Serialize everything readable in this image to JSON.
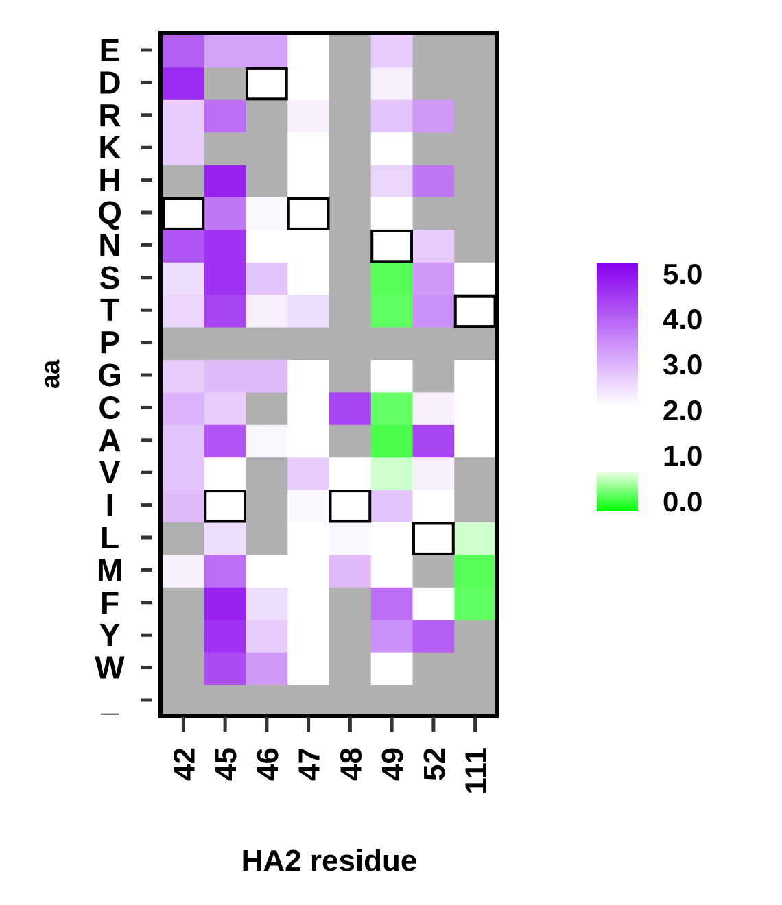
{
  "chart_data": {
    "type": "heatmap",
    "xlabel": "HA2 residue",
    "ylabel": "aa",
    "x_categories": [
      "42",
      "45",
      "46",
      "47",
      "48",
      "49",
      "52",
      "111"
    ],
    "y_categories": [
      "E",
      "D",
      "R",
      "K",
      "H",
      "Q",
      "N",
      "S",
      "T",
      "P",
      "G",
      "C",
      "A",
      "V",
      "I",
      "L",
      "M",
      "F",
      "Y",
      "W",
      "_"
    ],
    "value_range": [
      0,
      5
    ],
    "colorbar": {
      "ticks": [
        "5.0",
        "4.0",
        "3.0",
        "2.0",
        "1.0",
        "0.0"
      ],
      "high_color": "#8800ee",
      "mid_color": "#ffffff",
      "low_color": "#00ff00"
    },
    "missing_color": "#b0b0b0",
    "values": [
      [
        3.9,
        3.1,
        3.1,
        2.0,
        null,
        2.6,
        null,
        null
      ],
      [
        4.5,
        null,
        2.0,
        2.0,
        null,
        2.2,
        null,
        null
      ],
      [
        2.6,
        3.7,
        null,
        2.2,
        null,
        2.7,
        3.2,
        null
      ],
      [
        2.6,
        null,
        null,
        2.0,
        null,
        2.0,
        null,
        null
      ],
      [
        null,
        4.6,
        null,
        2.0,
        null,
        2.5,
        3.6,
        null
      ],
      [
        2.0,
        3.6,
        2.1,
        2.0,
        null,
        2.0,
        null,
        null
      ],
      [
        4.0,
        4.4,
        2.0,
        2.0,
        null,
        2.0,
        2.6,
        null
      ],
      [
        2.4,
        4.4,
        2.7,
        2.0,
        null,
        0.7,
        3.2,
        2.0
      ],
      [
        2.5,
        4.2,
        2.2,
        2.4,
        null,
        0.75,
        3.3,
        2.0
      ],
      [
        null,
        null,
        null,
        null,
        null,
        null,
        null,
        null
      ],
      [
        2.6,
        2.8,
        2.8,
        2.0,
        null,
        2.0,
        null,
        2.0
      ],
      [
        2.9,
        2.6,
        null,
        2.0,
        4.2,
        0.8,
        2.2,
        2.0
      ],
      [
        2.7,
        4.0,
        2.1,
        2.0,
        null,
        0.6,
        4.2,
        2.0
      ],
      [
        2.7,
        2.0,
        null,
        2.6,
        2.0,
        1.6,
        2.2,
        null
      ],
      [
        2.8,
        2.0,
        null,
        2.1,
        2.0,
        2.7,
        2.0,
        null
      ],
      [
        null,
        2.4,
        null,
        2.0,
        2.1,
        2.0,
        2.0,
        1.6
      ],
      [
        2.2,
        3.7,
        2.0,
        2.0,
        2.8,
        2.0,
        null,
        0.7
      ],
      [
        null,
        4.6,
        2.4,
        2.0,
        null,
        3.7,
        2.0,
        0.75
      ],
      [
        null,
        4.4,
        2.6,
        2.0,
        null,
        3.3,
        3.9,
        null
      ],
      [
        null,
        4.1,
        3.2,
        2.0,
        null,
        2.0,
        null,
        null
      ],
      [
        null,
        null,
        null,
        null,
        null,
        null,
        null,
        null
      ]
    ],
    "wildtype_boxes": [
      {
        "x": "46",
        "y": "D"
      },
      {
        "x": "42",
        "y": "Q"
      },
      {
        "x": "47",
        "y": "Q"
      },
      {
        "x": "49",
        "y": "N"
      },
      {
        "x": "111",
        "y": "T"
      },
      {
        "x": "45",
        "y": "I"
      },
      {
        "x": "48",
        "y": "I"
      },
      {
        "x": "52",
        "y": "L"
      }
    ]
  }
}
